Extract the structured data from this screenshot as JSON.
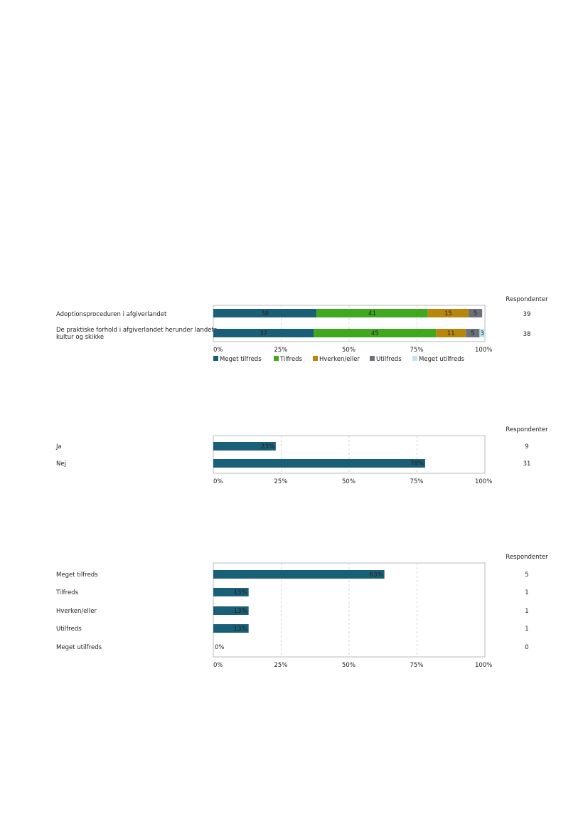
{
  "chart_data": [
    {
      "type": "bar",
      "stacked": true,
      "orientation": "horizontal",
      "respondents_header": "Respondenter",
      "categories": [
        "Adoptionsproceduren i afgiverlandet",
        "De praktiske forhold i afgiverlandet herunder landets kultur og skikke"
      ],
      "category_lines": [
        [
          "Adoptionsproceduren i afgiverlandet"
        ],
        [
          "De praktiske forhold i afgiverlandet herunder landets",
          "kultur og skikke"
        ]
      ],
      "respondents": [
        39,
        38
      ],
      "series": [
        {
          "name": "Meget tilfreds",
          "color": "#1a5f78",
          "values": [
            38,
            37
          ]
        },
        {
          "name": "Tilfreds",
          "color": "#3fa81c",
          "values": [
            41,
            45
          ]
        },
        {
          "name": "Hverken/eller",
          "color": "#b8860b",
          "values": [
            15,
            11
          ]
        },
        {
          "name": "Utilfreds",
          "color": "#6b7079",
          "values": [
            5,
            5
          ]
        },
        {
          "name": "Meget utilfreds",
          "color": "#bfe3f2",
          "values": [
            0,
            3
          ]
        }
      ],
      "value_labels": [
        [
          "38",
          "41",
          "15",
          "5",
          ""
        ],
        [
          "37",
          "45",
          "11",
          "5",
          "3"
        ]
      ],
      "xticks": [
        "0%",
        "25%",
        "50%",
        "75%",
        "100%"
      ],
      "xlim": [
        0,
        100
      ],
      "grid": true,
      "legend": "bottom"
    },
    {
      "type": "bar",
      "orientation": "horizontal",
      "respondents_header": "Respondenter",
      "categories": [
        "Ja",
        "Nej"
      ],
      "values": [
        23,
        78
      ],
      "value_labels": [
        "23%",
        "78%"
      ],
      "respondents": [
        9,
        31
      ],
      "color": "#1a5f78",
      "xticks": [
        "0%",
        "25%",
        "50%",
        "75%",
        "100%"
      ],
      "xlim": [
        0,
        100
      ],
      "grid": true
    },
    {
      "type": "bar",
      "orientation": "horizontal",
      "respondents_header": "Respondenter",
      "categories": [
        "Meget tilfreds",
        "Tilfreds",
        "Hverken/eller",
        "Utilfreds",
        "Meget utilfreds"
      ],
      "values": [
        63,
        13,
        13,
        13,
        0
      ],
      "value_labels": [
        "63%",
        "13%",
        "13%",
        "13%",
        "0%"
      ],
      "respondents": [
        5,
        1,
        1,
        1,
        0
      ],
      "color": "#1a5f78",
      "xticks": [
        "0%",
        "25%",
        "50%",
        "75%",
        "100%"
      ],
      "xlim": [
        0,
        100
      ],
      "grid": true
    }
  ]
}
